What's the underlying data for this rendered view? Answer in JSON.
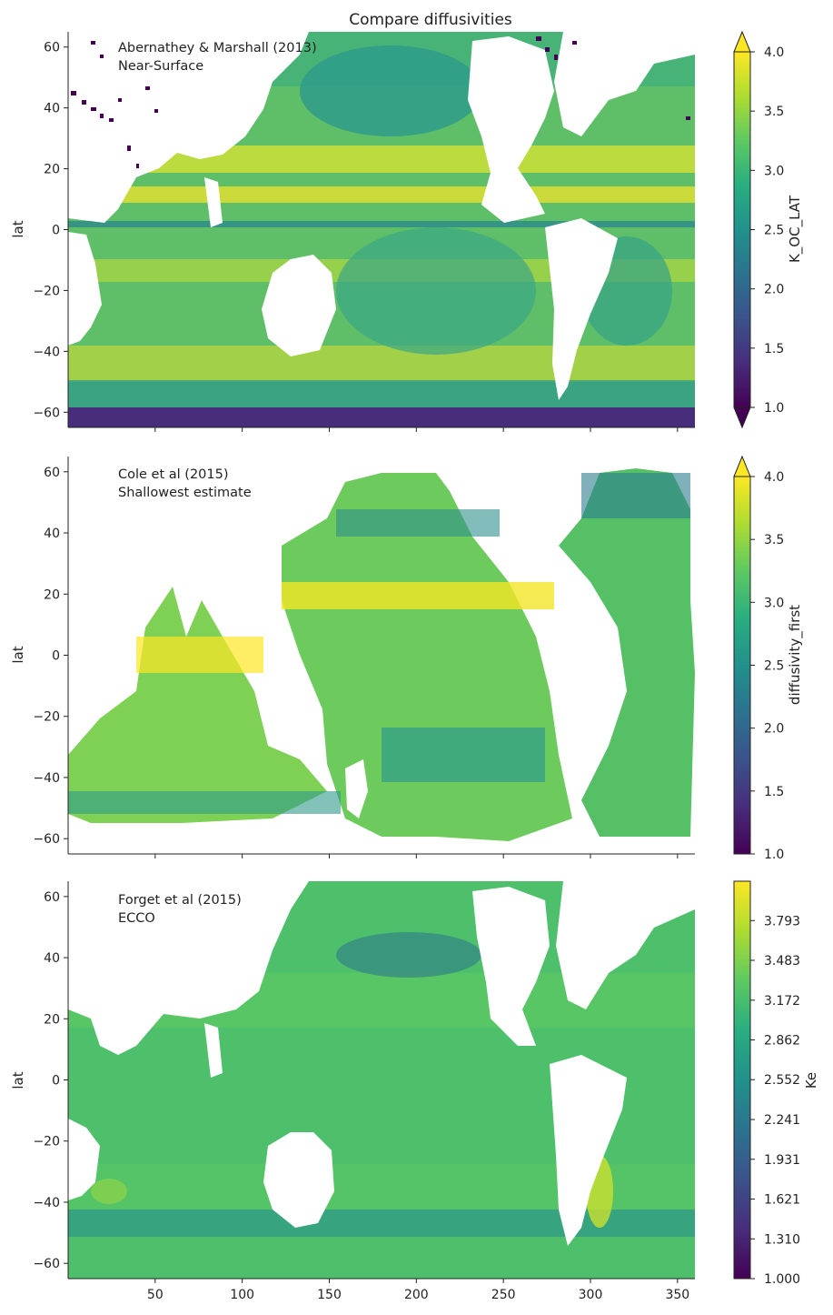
{
  "title": "Compare diffusivities",
  "colors": {
    "land": "#ffffff",
    "viridis": [
      "#440154",
      "#472d7b",
      "#3b528b",
      "#2c728e",
      "#21918c",
      "#28ae80",
      "#5ec962",
      "#addc30",
      "#fde725"
    ]
  },
  "chart_data": [
    {
      "type": "heatmap",
      "annotation": [
        "Abernathey & Marshall (2013)",
        "Near-Surface"
      ],
      "xlabel": "",
      "ylabel": "lat",
      "xlim": [
        0,
        360
      ],
      "ylim": [
        -65,
        65
      ],
      "yticks": [
        "60",
        "40",
        "20",
        "0",
        "−20",
        "−40",
        "−60"
      ],
      "xtick_positions": [
        50,
        100,
        150,
        200,
        250,
        300,
        350
      ],
      "xtick_labels": [],
      "colorbar": {
        "label": "K_OC_LAT",
        "range": [
          1.0,
          4.0
        ],
        "extend": "both",
        "ticks": [
          "4.0",
          "3.5",
          "3.0",
          "2.5",
          "2.0",
          "1.5",
          "1.0"
        ]
      }
    },
    {
      "type": "heatmap",
      "annotation": [
        "Cole et al (2015)",
        "Shallowest estimate"
      ],
      "xlabel": "",
      "ylabel": "lat",
      "xlim": [
        0,
        360
      ],
      "ylim": [
        -65,
        65
      ],
      "yticks": [
        "60",
        "40",
        "20",
        "0",
        "−20",
        "−40",
        "−60"
      ],
      "xtick_positions": [
        50,
        100,
        150,
        200,
        250,
        300,
        350
      ],
      "xtick_labels": [],
      "colorbar": {
        "label": "diffusivity_first",
        "range": [
          1.0,
          4.0
        ],
        "extend": "max",
        "ticks": [
          "4.0",
          "3.5",
          "3.0",
          "2.5",
          "2.0",
          "1.5",
          "1.0"
        ]
      }
    },
    {
      "type": "heatmap",
      "annotation": [
        "Forget et al (2015)",
        "ECCO"
      ],
      "xlabel": "",
      "ylabel": "lat",
      "xlim": [
        0,
        360
      ],
      "ylim": [
        -65,
        65
      ],
      "yticks": [
        "60",
        "40",
        "20",
        "0",
        "−20",
        "−40",
        "−60"
      ],
      "xtick_positions": [
        50,
        100,
        150,
        200,
        250,
        300,
        350
      ],
      "xtick_labels": [
        "50",
        "100",
        "150",
        "200",
        "250",
        "300",
        "350"
      ],
      "colorbar": {
        "label": "Ke",
        "range": [
          1.0,
          4.1
        ],
        "extend": "neither",
        "ticks": [
          "3.793",
          "3.483",
          "3.172",
          "2.862",
          "2.552",
          "2.241",
          "1.931",
          "1.621",
          "1.310",
          "1.000"
        ]
      }
    }
  ]
}
